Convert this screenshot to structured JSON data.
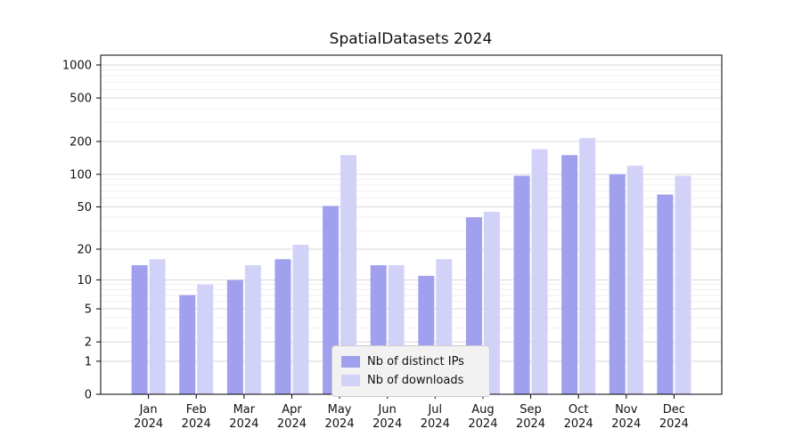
{
  "chart_data": {
    "type": "bar",
    "title": "SpatialDatasets 2024",
    "categories": [
      "Jan",
      "Feb",
      "Mar",
      "Apr",
      "May",
      "Jun",
      "Jul",
      "Aug",
      "Sep",
      "Oct",
      "Nov",
      "Dec"
    ],
    "year_label": "2024",
    "series": [
      {
        "name": "Nb of distinct IPs",
        "color": "#a0a0ee",
        "values": [
          14,
          7,
          10,
          16,
          51,
          14,
          11,
          40,
          97,
          150,
          100,
          65
        ]
      },
      {
        "name": "Nb of downloads",
        "color": "#d2d2f8",
        "values": [
          16,
          9,
          14,
          22,
          150,
          14,
          16,
          45,
          170,
          215,
          120,
          97
        ]
      }
    ],
    "yscale": "log(v+1)",
    "yticks": [
      0,
      1,
      2,
      5,
      10,
      20,
      50,
      100,
      200,
      500,
      1000
    ],
    "minor_yticks": [
      3,
      4,
      6,
      7,
      8,
      9,
      30,
      40,
      60,
      70,
      80,
      90,
      300,
      400,
      600,
      700,
      800,
      900
    ],
    "ylim": [
      0,
      1200
    ],
    "grid": true,
    "legend_position": "lower center",
    "axis_color": "#000000",
    "major_grid_color": "#d9d9d9",
    "minor_grid_color": "#efefef"
  }
}
